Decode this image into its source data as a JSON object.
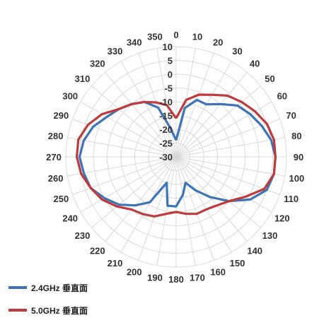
{
  "chart_data": {
    "type": "polar-line",
    "title": "",
    "angle_labels": [
      "0",
      "10",
      "20",
      "30",
      "40",
      "50",
      "60",
      "70",
      "80",
      "90",
      "100",
      "110",
      "120",
      "130",
      "140",
      "150",
      "160",
      "170",
      "180",
      "190",
      "200",
      "210",
      "220",
      "230",
      "240",
      "250",
      "260",
      "270",
      "280",
      "290",
      "300",
      "310",
      "320",
      "330",
      "340",
      "350"
    ],
    "radial_tick_labels": [
      "10",
      "5",
      "0",
      "-5",
      "-10",
      "-15",
      "-20",
      "-25",
      "-30"
    ],
    "rlim": [
      -30,
      10
    ],
    "grid": true,
    "legend_position": "bottom-left",
    "series": [
      {
        "name": "2.4GHz 垂直面",
        "color": "#3d73b8",
        "angles": [
          0,
          10,
          20,
          30,
          40,
          50,
          60,
          70,
          80,
          90,
          100,
          110,
          120,
          130,
          140,
          150,
          160,
          170,
          180,
          190,
          200,
          210,
          220,
          230,
          240,
          250,
          260,
          270,
          280,
          290,
          300,
          310,
          320,
          330,
          340,
          350
        ],
        "values": [
          -24,
          -12,
          -8,
          -8,
          -5,
          -1,
          1,
          3,
          5,
          6,
          6,
          5,
          1,
          -5,
          -11,
          -16,
          -20,
          -16,
          -12,
          -12,
          -20,
          -11,
          -7,
          -3,
          0,
          3,
          4,
          5,
          4,
          2,
          -1,
          -3,
          -5,
          -7,
          -11,
          -20
        ]
      },
      {
        "name": "5.0GHz 垂直面",
        "color": "#c0393b",
        "angles": [
          0,
          10,
          20,
          30,
          40,
          50,
          60,
          70,
          80,
          90,
          100,
          110,
          120,
          130,
          140,
          150,
          160,
          170,
          180,
          190,
          200,
          210,
          220,
          230,
          240,
          250,
          260,
          270,
          280,
          290,
          300,
          310,
          320,
          330,
          340,
          350
        ],
        "values": [
          -16,
          -9,
          -6,
          -4,
          -1,
          1,
          3,
          5,
          6,
          6,
          6,
          4,
          -1,
          -5,
          -7,
          -8,
          -8,
          -9,
          -10,
          -9,
          -7,
          -6,
          -5,
          -2,
          1,
          3,
          5,
          6,
          6,
          4,
          1,
          -3,
          -5,
          -7,
          -9,
          -11
        ]
      }
    ]
  }
}
